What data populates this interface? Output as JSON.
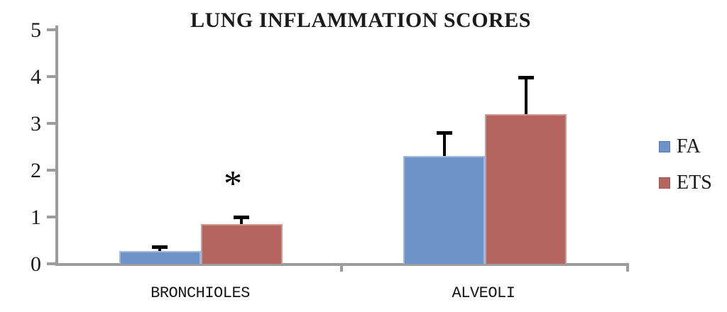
{
  "chart_data": {
    "type": "bar",
    "title": "LUNG INFLAMMATION SCORES",
    "categories": [
      "BRONCHIOLES",
      "ALVEOLI"
    ],
    "series": [
      {
        "name": "FA",
        "color": "#6E93C8",
        "border_color": "#A3B7DC",
        "legend_border_color": "#5578AC",
        "values": [
          0.28,
          2.3
        ],
        "errors": [
          0.08,
          0.5
        ]
      },
      {
        "name": "ETS",
        "color": "#B5655F",
        "border_color": "#D09A93",
        "legend_border_color": "#9E544E",
        "values": [
          0.85,
          3.2
        ],
        "errors": [
          0.15,
          0.78
        ]
      }
    ],
    "ylim": [
      0,
      5
    ],
    "y_ticks": [
      0,
      1,
      2,
      3,
      4,
      5
    ],
    "grid": "off",
    "legend_position": "right",
    "annotation": {
      "text": "*",
      "target_series": "ETS",
      "target_category": "BRONCHIOLES"
    },
    "error_bar_color": "#000000",
    "axis_color": "#9C9C9C"
  }
}
